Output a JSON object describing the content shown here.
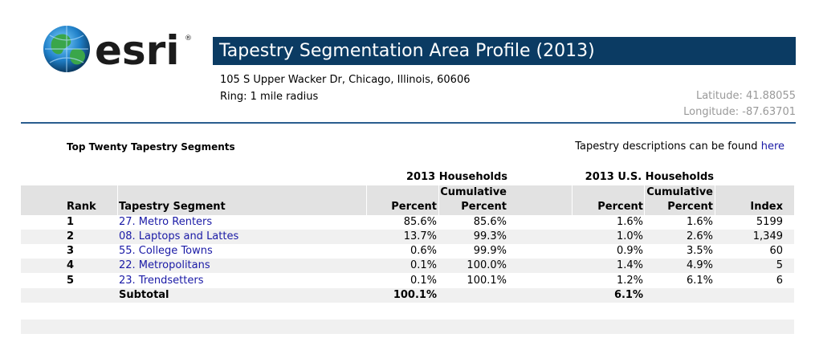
{
  "brand": {
    "wordmark": "esri",
    "reg": "®",
    "color": "#0b3b63"
  },
  "header": {
    "title": "Tapestry Segmentation Area Profile (2013)",
    "address": "105 S Upper Wacker Dr, Chicago, Illinois, 60606",
    "ring": "Ring: 1 mile radius",
    "latitude": "Latitude: 41.88055",
    "longitude": "Longitude: -87.63701"
  },
  "section": {
    "title": "Top Twenty Tapestry Segments",
    "desc_text": "Tapestry descriptions can be found",
    "desc_link": "here"
  },
  "table": {
    "group_2013": "2013 Households",
    "group_us": "2013 U.S. Households",
    "sub_cumulative_1": "Cumulative",
    "sub_cumulative_2": "Cumulative",
    "col_rank": "Rank",
    "col_segment": "Tapestry Segment",
    "col_percent_1": "Percent",
    "col_cum_percent_1": "Percent",
    "col_percent_2": "Percent",
    "col_cum_percent_2": "Percent",
    "col_index": "Index",
    "rows": [
      {
        "rank": "1",
        "segment": "27. Metro Renters",
        "pct": "85.6%",
        "cum": "85.6%",
        "us_pct": "1.6%",
        "us_cum": "1.6%",
        "index": "5199"
      },
      {
        "rank": "2",
        "segment": "08. Laptops and Lattes",
        "pct": "13.7%",
        "cum": "99.3%",
        "us_pct": "1.0%",
        "us_cum": "2.6%",
        "index": "1,349"
      },
      {
        "rank": "3",
        "segment": "55. College Towns",
        "pct": "0.6%",
        "cum": "99.9%",
        "us_pct": "0.9%",
        "us_cum": "3.5%",
        "index": "60"
      },
      {
        "rank": "4",
        "segment": "22. Metropolitans",
        "pct": "0.1%",
        "cum": "100.0%",
        "us_pct": "1.4%",
        "us_cum": "4.9%",
        "index": "5"
      },
      {
        "rank": "5",
        "segment": "23. Trendsetters",
        "pct": "0.1%",
        "cum": "100.1%",
        "us_pct": "1.2%",
        "us_cum": "6.1%",
        "index": "6"
      }
    ],
    "subtotal": {
      "label": "Subtotal",
      "pct": "100.1%",
      "us_pct": "6.1%"
    }
  }
}
